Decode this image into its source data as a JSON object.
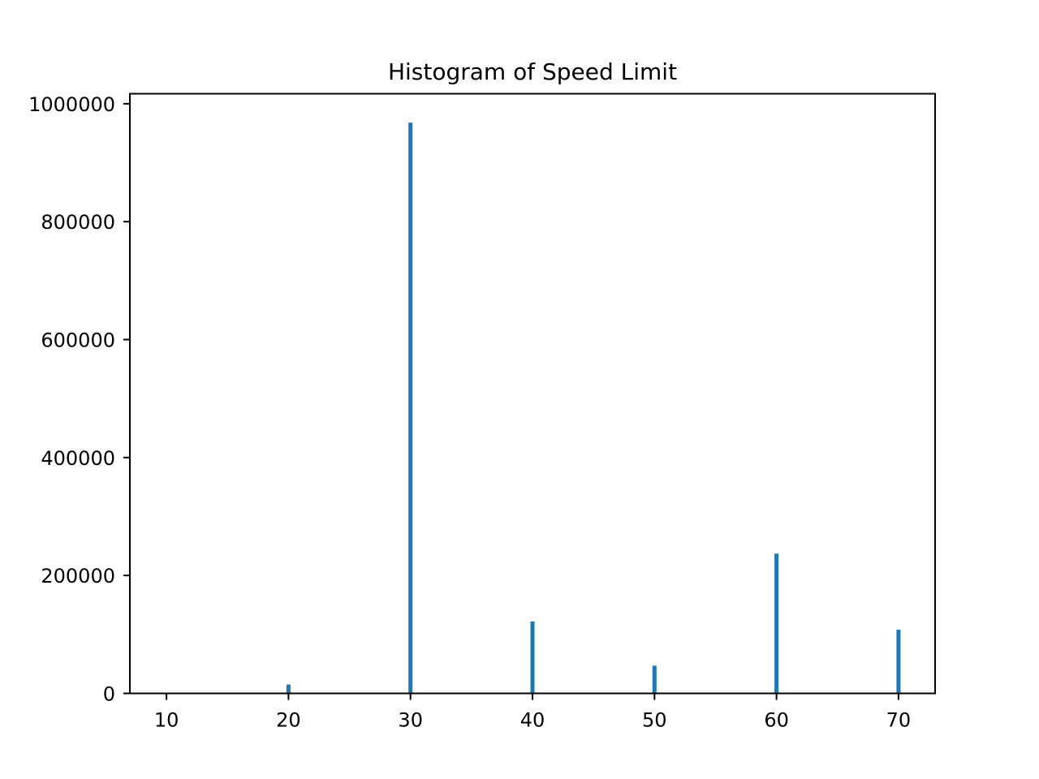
{
  "chart_data": {
    "type": "bar",
    "title": "Histogram of Speed Limit",
    "xlabel": "",
    "ylabel": "",
    "x": [
      10,
      20,
      30,
      40,
      50,
      60,
      70
    ],
    "values": [
      1000,
      15000,
      968000,
      122000,
      47000,
      237000,
      108000
    ],
    "xlim": [
      7,
      73
    ],
    "ylim": [
      0,
      1017000
    ],
    "xticks": [
      10,
      20,
      30,
      40,
      50,
      60,
      70
    ],
    "yticks": [
      0,
      200000,
      400000,
      600000,
      800000,
      1000000
    ],
    "xtick_labels": [
      "10",
      "20",
      "30",
      "40",
      "50",
      "60",
      "70"
    ],
    "ytick_labels": [
      "0",
      "200000",
      "400000",
      "600000",
      "800000",
      "1000000"
    ],
    "grid": false,
    "legend": "none",
    "bar_color": "#1f77b4"
  }
}
